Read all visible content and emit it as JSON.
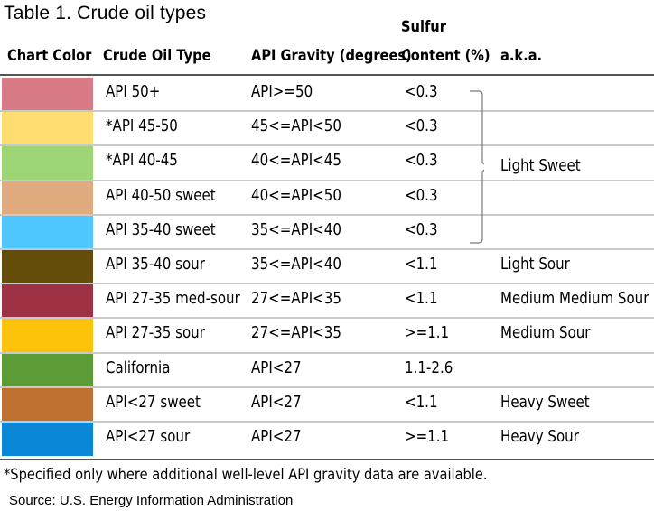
{
  "title": "Table 1. Crude oil types",
  "headers": {
    "chart_color": "Chart Color",
    "crude_oil_type": "Crude Oil Type",
    "api_gravity": "API Gravity (degrees)",
    "sulfur_line1": "Sulfur",
    "sulfur_line2": "Content (%)",
    "aka": "a.k.a."
  },
  "rows": [
    {
      "color": "#D87A86",
      "type": "API 50+",
      "gravity": "API>=50",
      "sulfur": "<0.3",
      "aka": ""
    },
    {
      "color": "#FFDD71",
      "type": "*API 45-50",
      "gravity": "45<=API<50",
      "sulfur": "<0.3",
      "aka": ""
    },
    {
      "color": "#9DD575",
      "type": "*API 40-45",
      "gravity": "40<=API<45",
      "sulfur": "<0.3",
      "aka": ""
    },
    {
      "color": "#DEAA7E",
      "type": "API 40-50 sweet",
      "gravity": "40<=API<50",
      "sulfur": "<0.3",
      "aka": ""
    },
    {
      "color": "#4FC6FE",
      "type": "API 35-40 sweet",
      "gravity": "35<=API<40",
      "sulfur": "<0.3",
      "aka": ""
    },
    {
      "color": "#644C0A",
      "type": "API 35-40 sour",
      "gravity": "35<=API<40",
      "sulfur": "<1.1",
      "aka": "Light Sour"
    },
    {
      "color": "#9E3244",
      "type": "API 27-35 med-sour",
      "gravity": "27<=API<35",
      "sulfur": "<1.1",
      "aka": "Medium Medium Sour"
    },
    {
      "color": "#FDC30A",
      "type": "API 27-35 sour",
      "gravity": "27<=API<35",
      "sulfur": ">=1.1",
      "aka": "Medium Sour"
    },
    {
      "color": "#5C9C36",
      "type": "California",
      "gravity": "API<27",
      "sulfur": "1.1-2.6",
      "aka": ""
    },
    {
      "color": "#BE7131",
      "type": "API<27 sweet",
      "gravity": "API<27",
      "sulfur": "<1.1",
      "aka": "Heavy Sweet"
    },
    {
      "color": "#0B87D8",
      "type": "API<27 sour",
      "gravity": "API<27",
      "sulfur": ">=1.1",
      "aka": "Heavy Sour"
    }
  ],
  "group_label": "Light Sweet",
  "footnote": "*Specified only where additional well-level API gravity data are available.",
  "source": "Source: U.S. Energy Information Administration"
}
